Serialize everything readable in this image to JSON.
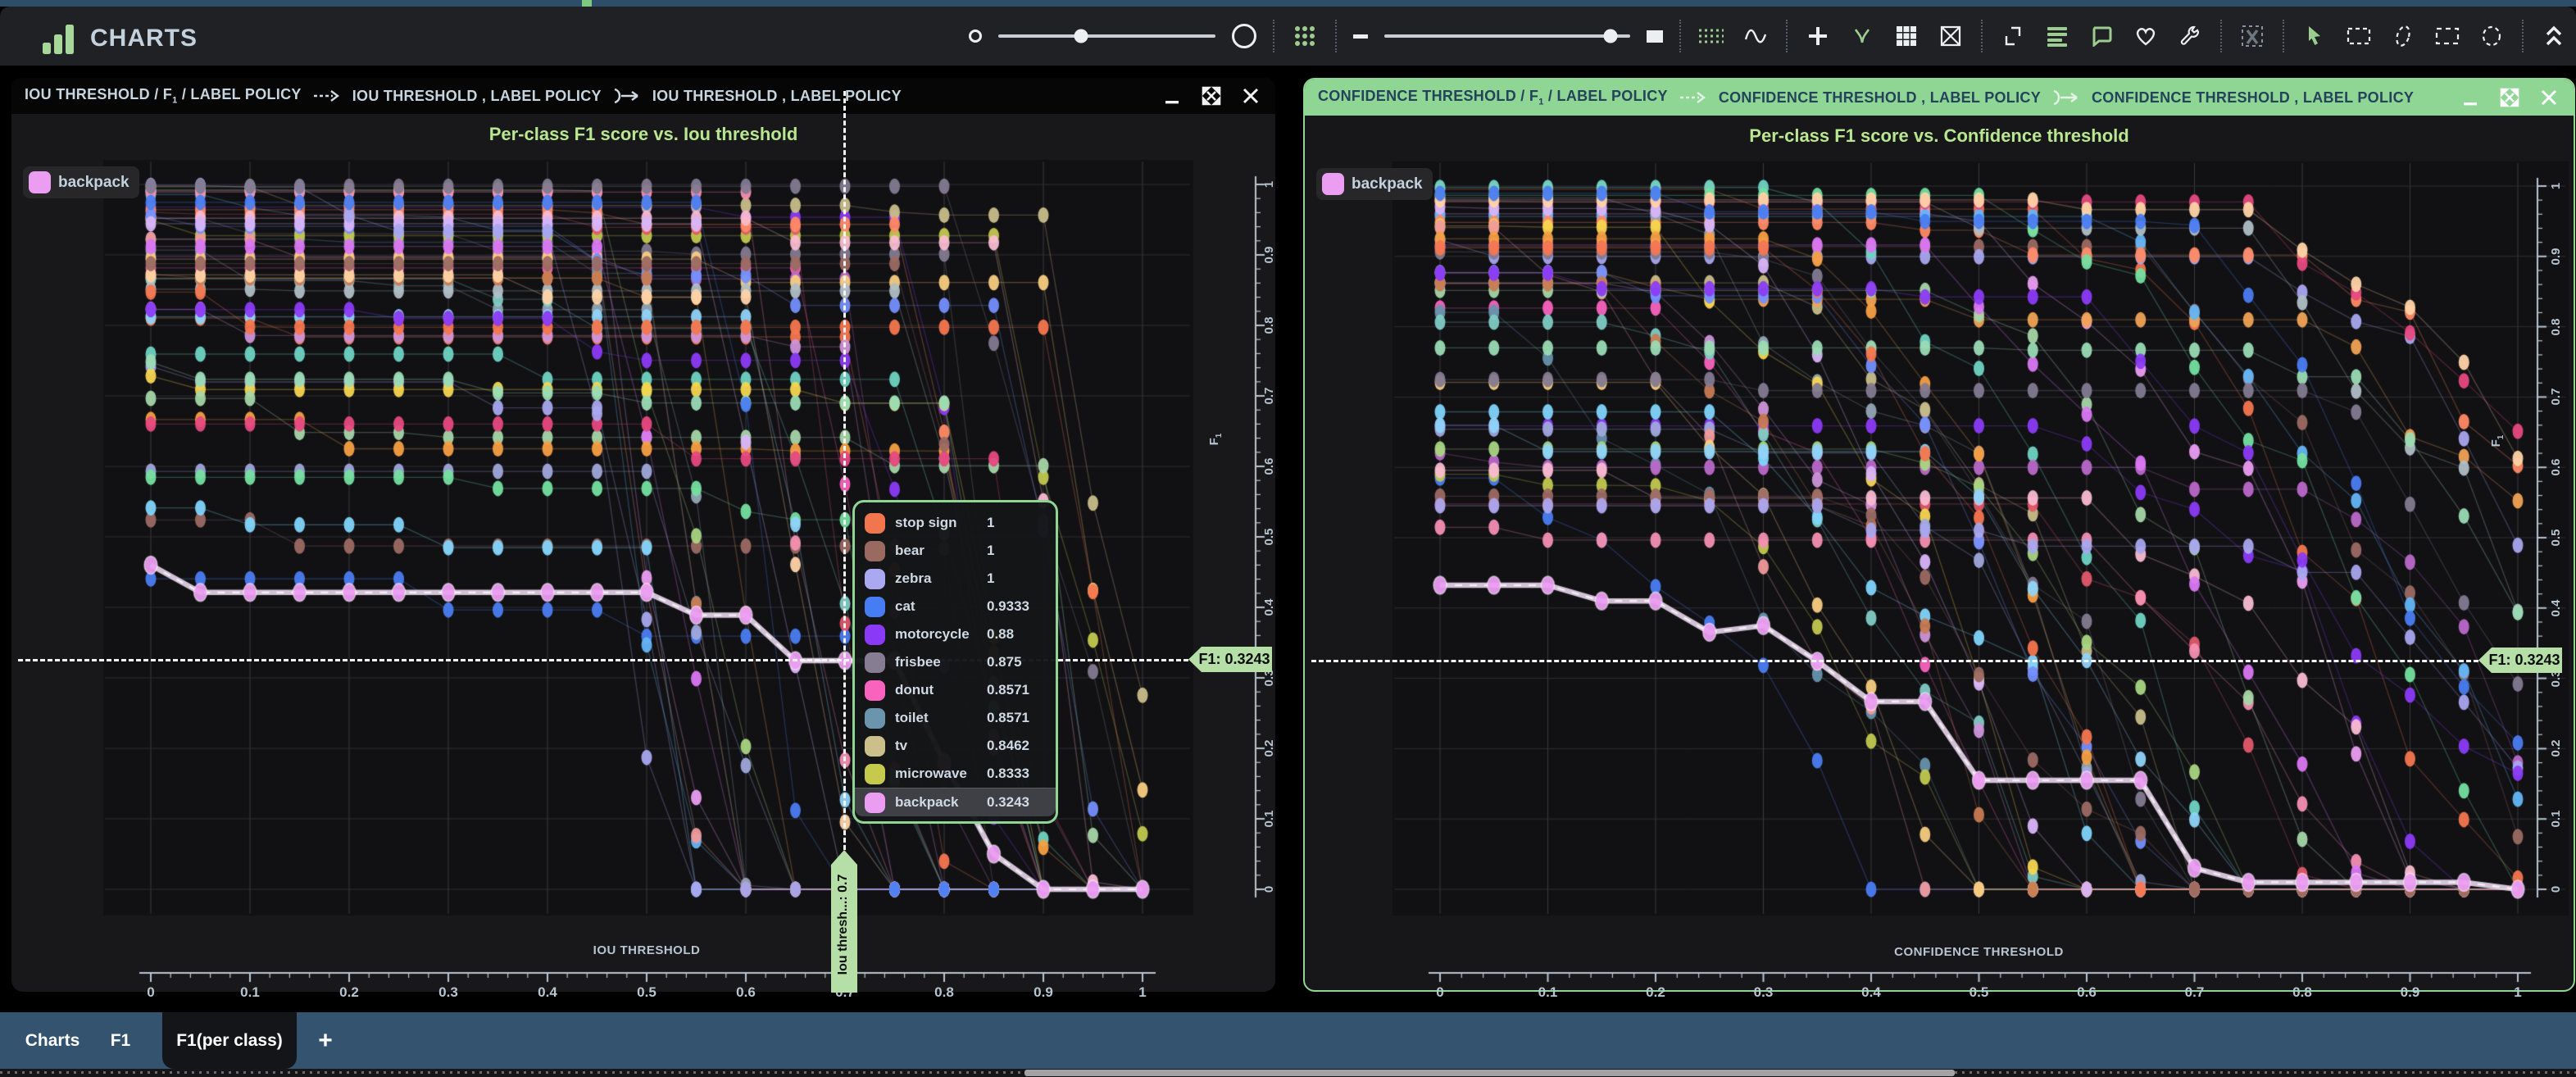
{
  "app": {
    "title": "CHARTS"
  },
  "toolbar": {
    "point_size_slider": {
      "value_pct": 38
    },
    "line_width_slider": {
      "value_pct": 92
    }
  },
  "windows": {
    "left": {
      "titlebar": {
        "seg1": {
          "pre": "IOU THRESHOLD / F",
          "sub": "1",
          "post": " / LABEL POLICY"
        },
        "seg2": "IOU THRESHOLD , LABEL POLICY",
        "seg3": "IOU THRESHOLD , LABEL POLICY"
      },
      "title": "Per-class F1 score vs. Iou threshold",
      "legend": {
        "label": "backpack",
        "color": "#eb9df1"
      },
      "x_axis": {
        "title": "IOU THRESHOLD",
        "ticks": [
          "0",
          "0.1",
          "0.2",
          "0.3",
          "0.4",
          "0.5",
          "0.6",
          "0.7",
          "0.8",
          "0.9",
          "1"
        ]
      },
      "y_axis": {
        "title_pre": "F",
        "title_sub": "1",
        "ticks": [
          "0",
          "0.1",
          "0.2",
          "0.3",
          "0.4",
          "0.5",
          "0.6",
          "0.7",
          "0.8",
          "0.9",
          "1"
        ]
      },
      "crosshair": {
        "x_tag": "Iou thresh...: 0.7",
        "y_tag": "F1: 0.3243"
      },
      "tooltip": {
        "rows": [
          {
            "label": "stop sign",
            "value": "1",
            "color": "#f2764d"
          },
          {
            "label": "bear",
            "value": "1",
            "color": "#9a6a61"
          },
          {
            "label": "zebra",
            "value": "1",
            "color": "#aaa8f1"
          },
          {
            "label": "cat",
            "value": "0.9333",
            "color": "#477df4"
          },
          {
            "label": "motorcycle",
            "value": "0.88",
            "color": "#8a39f6"
          },
          {
            "label": "frisbee",
            "value": "0.875",
            "color": "#867d92"
          },
          {
            "label": "donut",
            "value": "0.8571",
            "color": "#fa63bd"
          },
          {
            "label": "toilet",
            "value": "0.8571",
            "color": "#6b95ad"
          },
          {
            "label": "tv",
            "value": "0.8462",
            "color": "#cbbf8b"
          },
          {
            "label": "microwave",
            "value": "0.8333",
            "color": "#c5ca4d"
          },
          {
            "label": "backpack",
            "value": "0.3243",
            "color": "#eb9df1",
            "highlight": true
          }
        ]
      }
    },
    "right": {
      "titlebar": {
        "seg1": {
          "pre": "CONFIDENCE THRESHOLD / F",
          "sub": "1",
          "post": " / LABEL POLICY"
        },
        "seg2": "CONFIDENCE THRESHOLD , LABEL POLICY",
        "seg3": "CONFIDENCE THRESHOLD , LABEL POLICY"
      },
      "title": "Per-class F1 score vs. Confidence threshold",
      "legend": {
        "label": "backpack",
        "color": "#eb9df1"
      },
      "x_axis": {
        "title": "CONFIDENCE THRESHOLD",
        "ticks": [
          "0",
          "0.1",
          "0.2",
          "0.3",
          "0.4",
          "0.5",
          "0.6",
          "0.7",
          "0.8",
          "0.9",
          "1"
        ]
      },
      "y_axis": {
        "title_pre": "F",
        "title_sub": "1",
        "ticks": [
          "0",
          "0.1",
          "0.2",
          "0.3",
          "0.4",
          "0.5",
          "0.6",
          "0.7",
          "0.8",
          "0.9",
          "1"
        ]
      },
      "crosshair": {
        "y_tag": "F1: 0.3243"
      }
    }
  },
  "tabs": {
    "items": [
      {
        "label": "Charts",
        "active": false
      },
      {
        "label": "F1",
        "active": false
      },
      {
        "label": "F1(per class)",
        "active": true
      }
    ],
    "add_label": "+"
  },
  "palette": [
    "#f4764e",
    "#9b6a62",
    "#a9a6ee",
    "#4b7df1",
    "#8b3bf4",
    "#837a90",
    "#f763bd",
    "#6792ab",
    "#c8bd89",
    "#c2c84e",
    "#eb9df1",
    "#6fd3c2",
    "#f0a254",
    "#e05869",
    "#64b5f6",
    "#b968c8",
    "#a8d581",
    "#ff8a65",
    "#93a7b4",
    "#f48fb1",
    "#7fcbc4",
    "#f5d54f",
    "#9fa8da",
    "#ef9a9a",
    "#ce93d8",
    "#81d4fa",
    "#a5d6a7",
    "#f7cc80",
    "#b0bec5",
    "#f8bbd0",
    "#74df9f",
    "#da77f2",
    "#748ffc",
    "#f59f42",
    "#e64980",
    "#c77b52",
    "#8fd3f8",
    "#d8b4f8",
    "#ffd3a5",
    "#9adbb4"
  ],
  "chart_data": [
    {
      "type": "scatter",
      "title": "Per-class F1 score vs. Iou threshold",
      "xlabel": "IOU THRESHOLD",
      "ylabel": "F1",
      "xlim": [
        0,
        1
      ],
      "ylim": [
        0,
        1
      ],
      "grid": true,
      "x": [
        0,
        0.05,
        0.1,
        0.15,
        0.2,
        0.25,
        0.3,
        0.35,
        0.4,
        0.45,
        0.5,
        0.55,
        0.6,
        0.65,
        0.7,
        0.75,
        0.8,
        0.85,
        0.9,
        0.95,
        1
      ],
      "highlight_series": {
        "name": "backpack",
        "color": "#eb9df1",
        "values": [
          0.46,
          0.4211,
          0.4211,
          0.4211,
          0.4211,
          0.4211,
          0.4211,
          0.4211,
          0.4211,
          0.4211,
          0.4211,
          0.3889,
          0.3889,
          0.3243,
          0.3243,
          0.3243,
          0.18,
          0.05,
          0,
          0,
          0
        ]
      },
      "crosshair": {
        "x": 0.7,
        "f1": 0.3243
      },
      "values_at_crosshair": {
        "stop sign": 1,
        "bear": 1,
        "zebra": 1,
        "cat": 0.9333,
        "motorcycle": 0.88,
        "frisbee": 0.875,
        "donut": 0.8571,
        "toilet": 0.8571,
        "tv": 0.8462,
        "microwave": 0.8333,
        "backpack": 0.3243
      },
      "background_cloud": {
        "count": 46,
        "seed": 11,
        "profile": "flat-then-collapse"
      }
    },
    {
      "type": "scatter",
      "title": "Per-class F1 score vs. Confidence threshold",
      "xlabel": "CONFIDENCE THRESHOLD",
      "ylabel": "F1",
      "xlim": [
        0,
        1
      ],
      "ylim": [
        0,
        1
      ],
      "grid": true,
      "x": [
        0,
        0.05,
        0.1,
        0.15,
        0.2,
        0.25,
        0.3,
        0.35,
        0.4,
        0.45,
        0.5,
        0.55,
        0.6,
        0.65,
        0.7,
        0.75,
        0.8,
        0.85,
        0.9,
        0.95,
        1
      ],
      "highlight_series": {
        "name": "backpack",
        "color": "#eb9df1",
        "values": [
          0.4324,
          0.4324,
          0.4324,
          0.41,
          0.41,
          0.3655,
          0.375,
          0.3243,
          0.267,
          0.267,
          0.155,
          0.155,
          0.155,
          0.155,
          0.03,
          0.01,
          0.01,
          0.01,
          0.01,
          0.01,
          0
        ]
      },
      "crosshair": {
        "f1": 0.3243
      },
      "background_cloud": {
        "count": 46,
        "seed": 23,
        "profile": "gradual-decline"
      }
    }
  ]
}
